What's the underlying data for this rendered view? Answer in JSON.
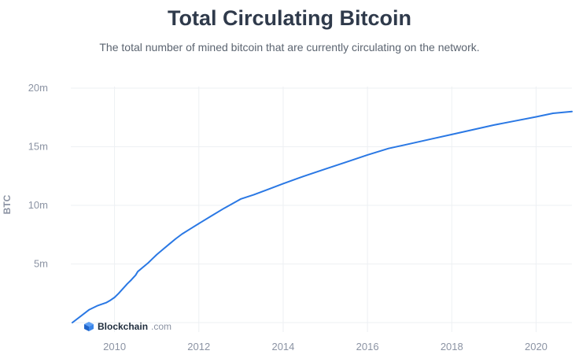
{
  "chart_data": {
    "type": "line",
    "title": "Total Circulating Bitcoin",
    "subtitle": "The total number of mined bitcoin that are currently circulating on the network.",
    "xlabel": "",
    "ylabel": "BTC",
    "xlim": [
      2009.0,
      2020.85
    ],
    "ylim": [
      0,
      20000000
    ],
    "x_ticks": [
      2010,
      2012,
      2014,
      2016,
      2018,
      2020
    ],
    "y_ticks": [
      {
        "value": 5000000,
        "label": "5m"
      },
      {
        "value": 10000000,
        "label": "10m"
      },
      {
        "value": 15000000,
        "label": "15m"
      },
      {
        "value": 20000000,
        "label": "20m"
      }
    ],
    "grid": true,
    "legend": "none",
    "series": [
      {
        "name": "Total Circulating Bitcoin",
        "color": "#2a78e4",
        "x": [
          2009.0,
          2009.2,
          2009.4,
          2009.6,
          2009.8,
          2009.9,
          2010.0,
          2010.1,
          2010.2,
          2010.3,
          2010.4,
          2010.5,
          2010.55,
          2010.7,
          2010.8,
          2010.9,
          2011.0,
          2011.15,
          2011.3,
          2011.45,
          2011.6,
          2011.8,
          2012.0,
          2012.3,
          2012.6,
          2012.9,
          2013.0,
          2013.3,
          2013.6,
          2014.0,
          2014.5,
          2015.0,
          2015.5,
          2016.0,
          2016.5,
          2017.0,
          2017.5,
          2018.0,
          2018.5,
          2019.0,
          2019.5,
          2020.0,
          2020.4,
          2020.85
        ],
        "values": [
          0,
          550000,
          1100000,
          1450000,
          1700000,
          1900000,
          2150000,
          2500000,
          2900000,
          3300000,
          3650000,
          4050000,
          4350000,
          4800000,
          5100000,
          5450000,
          5800000,
          6250000,
          6700000,
          7150000,
          7550000,
          8000000,
          8450000,
          9100000,
          9750000,
          10350000,
          10550000,
          10900000,
          11300000,
          11850000,
          12500000,
          13100000,
          13700000,
          14300000,
          14850000,
          15250000,
          15650000,
          16050000,
          16450000,
          16850000,
          17200000,
          17550000,
          17850000,
          18000000
        ]
      }
    ]
  },
  "brand": {
    "name": "Blockchain",
    "suffix": ".com",
    "logo_icon": "blockchain-cube-icon"
  }
}
